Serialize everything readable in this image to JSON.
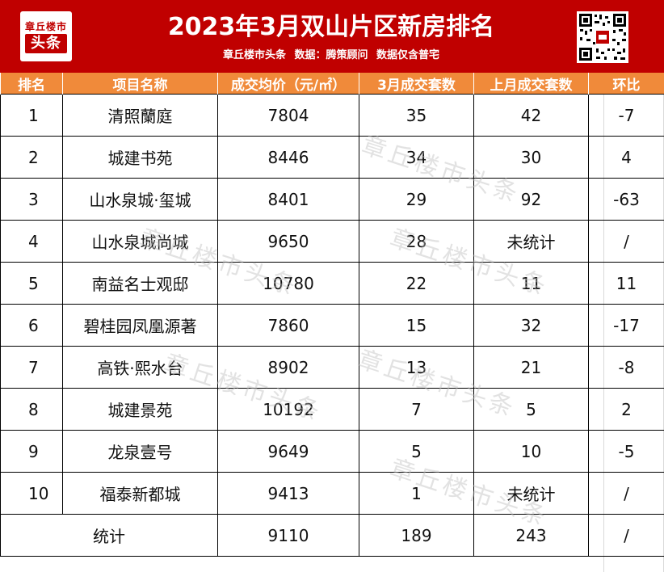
{
  "header": {
    "logo_top": "章丘楼市",
    "logo_main": "头条",
    "title": "2023年3月双山片区新房排名",
    "subtitle": "章丘楼市头条  数据：腾策顾问  数据仅含普宅"
  },
  "table": {
    "columns": [
      "排名",
      "项目名称",
      "成交均价（元/㎡）",
      "3月成交套数",
      "上月成交套数",
      "环比"
    ],
    "rows": [
      {
        "rank": "1",
        "name": "清照蘭庭",
        "price": "7804",
        "march": "35",
        "last": "42",
        "change": "-7"
      },
      {
        "rank": "2",
        "name": "城建书苑",
        "price": "8446",
        "march": "34",
        "last": "30",
        "change": "4"
      },
      {
        "rank": "3",
        "name": "山水泉城·玺城",
        "price": "8401",
        "march": "29",
        "last": "92",
        "change": "-63"
      },
      {
        "rank": "4",
        "name": "山水泉城尚城",
        "price": "9650",
        "march": "28",
        "last": "未统计",
        "change": "/"
      },
      {
        "rank": "5",
        "name": "南益名士观邸",
        "price": "10780",
        "march": "22",
        "last": "11",
        "change": "11"
      },
      {
        "rank": "6",
        "name": "碧桂园凤凰源著",
        "price": "7860",
        "march": "15",
        "last": "32",
        "change": "-17"
      },
      {
        "rank": "7",
        "name": "高铁·熙水台",
        "price": "8902",
        "march": "13",
        "last": "21",
        "change": "-8"
      },
      {
        "rank": "8",
        "name": "城建景苑",
        "price": "10192",
        "march": "7",
        "last": "5",
        "change": "2"
      },
      {
        "rank": "9",
        "name": "龙泉壹号",
        "price": "9649",
        "march": "5",
        "last": "10",
        "change": "-5"
      },
      {
        "rank": "10",
        "name": "福泰新都城",
        "price": "9413",
        "march": "1",
        "last": "未统计",
        "change": "/"
      }
    ],
    "total": {
      "label": "统计",
      "price": "9110",
      "march": "189",
      "last": "243",
      "change": "/"
    }
  },
  "watermark": "章丘楼市头条",
  "colors": {
    "header_bg": "#c00000",
    "column_header_bg": "#f08a3a",
    "text": "#111111"
  }
}
